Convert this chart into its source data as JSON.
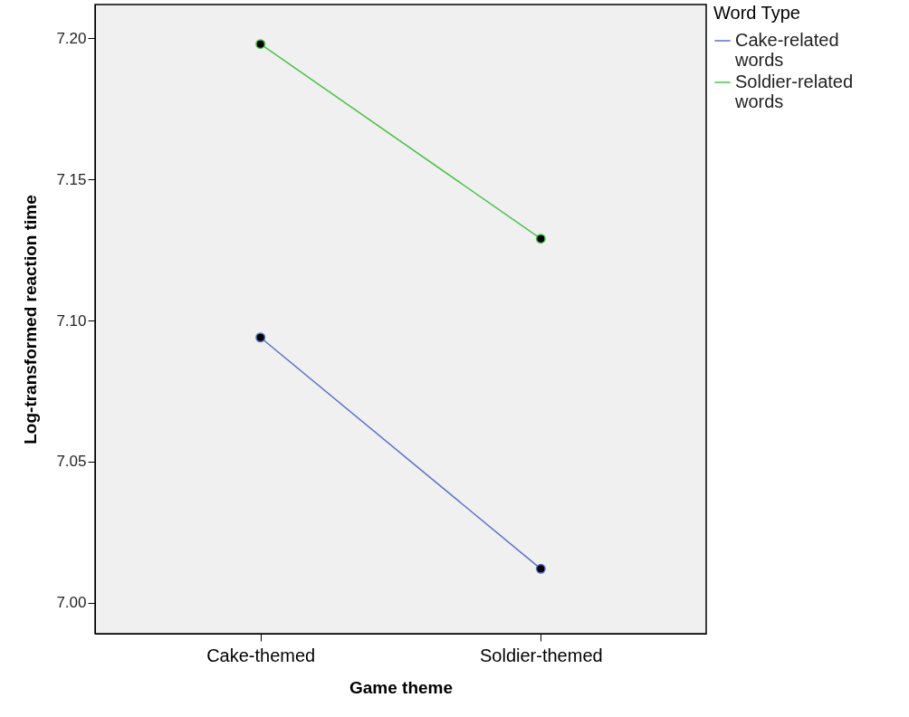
{
  "chart_data": {
    "type": "line",
    "xlabel": "Game theme",
    "ylabel": "Log-transformed reaction time",
    "legend_title": "Word Type",
    "categories": [
      "Cake-themed",
      "Soldier-themed"
    ],
    "series": [
      {
        "name": "Cake-related words",
        "color": "#5a6fc6",
        "values": [
          7.094,
          7.012
        ]
      },
      {
        "name": "Soldier-related words",
        "color": "#4cc24c",
        "values": [
          7.198,
          7.129
        ]
      }
    ],
    "ylim": [
      6.989,
      7.212
    ],
    "yticks": [
      {
        "value": 7.0,
        "label": "7.00"
      },
      7.05,
      {
        "value": 7.1,
        "label": "7.10"
      },
      7.15,
      {
        "value": 7.2,
        "label": "7.20"
      }
    ],
    "grid": false,
    "legend": "top right",
    "marker": "circle"
  }
}
